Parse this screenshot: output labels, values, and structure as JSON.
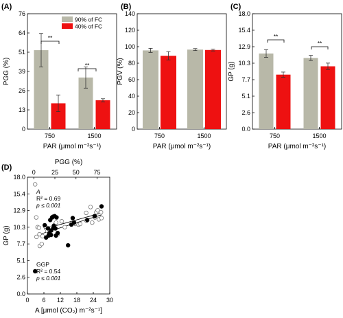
{
  "chart_data": [
    {
      "panel": "(A)",
      "type": "bar",
      "categories": [
        "750",
        "1500"
      ],
      "ylabel": "PGG (%)",
      "xlabel": "PAR (μmol m⁻²s⁻¹)",
      "ylim": [
        0,
        76
      ],
      "yticks": [
        "0",
        "13",
        "26",
        "39",
        "51",
        "64",
        "76"
      ],
      "legend": "top-right",
      "series": [
        {
          "name": "90% of FC",
          "color": "#b8b8a8",
          "values": [
            52,
            34
          ],
          "errors": [
            11,
            7
          ]
        },
        {
          "name": "40% of FC",
          "color": "#ee1111",
          "values": [
            17,
            19
          ],
          "errors": [
            5.5,
            1
          ]
        }
      ],
      "annotations": [
        "**",
        "**"
      ]
    },
    {
      "panel": "(B)",
      "type": "bar",
      "categories": [
        "750",
        "1500"
      ],
      "ylabel": "PGV (%)",
      "xlabel": "PAR (μmol m⁻²s⁻¹)",
      "ylim": [
        0,
        140
      ],
      "yticks": [
        "0",
        "20",
        "40",
        "60",
        "80",
        "100",
        "120",
        "140"
      ],
      "series": [
        {
          "name": "90% of FC",
          "color": "#b8b8a8",
          "values": [
            95.5,
            96.5
          ],
          "errors": [
            2.5,
            1.2
          ]
        },
        {
          "name": "40% of FC",
          "color": "#ee1111",
          "values": [
            89,
            96
          ],
          "errors": [
            5,
            1.2
          ]
        }
      ]
    },
    {
      "panel": "(C)",
      "type": "bar",
      "categories": [
        "750",
        "1500"
      ],
      "ylabel": "GP (g)",
      "xlabel": "PAR (μmol m⁻²s⁻¹)",
      "ylim": [
        0,
        18
      ],
      "yticks": [
        "0.0",
        "2.6",
        "5.1",
        "7.7",
        "10.3",
        "12.9",
        "15.4",
        "18.0"
      ],
      "series": [
        {
          "name": "90% of FC",
          "color": "#b8b8a8",
          "values": [
            11.8,
            11.1
          ],
          "errors": [
            0.6,
            0.4
          ]
        },
        {
          "name": "40% of FC",
          "color": "#ee1111",
          "values": [
            8.5,
            9.8
          ],
          "errors": [
            0.4,
            0.5
          ]
        }
      ],
      "annotations": [
        "**",
        "**"
      ]
    },
    {
      "panel": "(D)",
      "type": "scatter",
      "ylabel": "GP (g)",
      "xlabel": "A [μmol (CO₂) m⁻²s⁻¹]",
      "xlabel_top": "PGG (%)",
      "xlim": [
        0,
        30
      ],
      "xticks": [
        "0",
        "6",
        "12",
        "18",
        "24",
        "30"
      ],
      "xlim_top": [
        -7.5,
        90
      ],
      "xticks_top": [
        "0",
        "25",
        "50",
        "75"
      ],
      "ylim": [
        0,
        18
      ],
      "yticks": [
        "0.0",
        "2.6",
        "5.1",
        "7.7",
        "10.3",
        "12.9",
        "15.4",
        "18.0"
      ],
      "series": [
        {
          "name": "A",
          "marker": "open-circle",
          "stat_lines": [
            "A",
            "R² = 0.69",
            "p ≤ 0.001"
          ],
          "fit": [
            [
              3,
              9.0
            ],
            [
              27,
              12.2
            ]
          ],
          "points": [
            [
              2.8,
              16.9
            ],
            [
              3.2,
              11.8
            ],
            [
              3.3,
              8.8
            ],
            [
              3.7,
              10.3
            ],
            [
              4.2,
              10.2
            ],
            [
              4.4,
              9.2
            ],
            [
              5.5,
              8.9
            ],
            [
              4.5,
              7.4
            ],
            [
              5.2,
              7.7
            ],
            [
              6.5,
              10.4
            ],
            [
              7.3,
              9.7
            ],
            [
              8.1,
              10.1
            ],
            [
              9.8,
              10.6
            ],
            [
              10.4,
              11.0
            ],
            [
              11.0,
              9.2
            ],
            [
              12.5,
              11.2
            ],
            [
              13.6,
              10.3
            ],
            [
              17.4,
              10.8
            ],
            [
              18.6,
              10.7
            ],
            [
              19.2,
              10.8
            ],
            [
              21.4,
              12.5
            ],
            [
              21.5,
              11.3
            ],
            [
              23.0,
              13.4
            ],
            [
              23.6,
              11.0
            ],
            [
              24.6,
              11.8
            ],
            [
              25.1,
              12.6
            ],
            [
              25.6,
              12.9
            ],
            [
              26.0,
              11.5
            ],
            [
              26.8,
              12.6
            ],
            [
              27.0,
              11.7
            ]
          ]
        },
        {
          "name": "GGP",
          "marker": "filled-circle",
          "stat_lines": [
            "GGP",
            "R² = 0.54",
            "p ≤ 0.001"
          ],
          "fit": [
            [
              6,
              10.0
            ],
            [
              27,
              12.5
            ]
          ],
          "points": [
            [
              2.8,
              3.5
            ],
            [
              6.3,
              10.6
            ],
            [
              6.8,
              8.7
            ],
            [
              7.5,
              10.1
            ],
            [
              7.7,
              9.0
            ],
            [
              8.0,
              9.4
            ],
            [
              8.3,
              11.4
            ],
            [
              8.6,
              9.1
            ],
            [
              8.7,
              9.8
            ],
            [
              9.0,
              11.8
            ],
            [
              9.3,
              11.9
            ],
            [
              9.5,
              10.2
            ],
            [
              9.6,
              10.5
            ],
            [
              9.9,
              12.0
            ],
            [
              10.2,
              10.1
            ],
            [
              10.4,
              9.0
            ],
            [
              10.6,
              11.8
            ],
            [
              11.0,
              9.4
            ],
            [
              14.8,
              7.5
            ],
            [
              16.0,
              10.7
            ],
            [
              16.5,
              11.7
            ],
            [
              17.0,
              11.0
            ],
            [
              21.8,
              11.4
            ],
            [
              24.5,
              12.0
            ],
            [
              27.0,
              13.5
            ]
          ]
        }
      ]
    }
  ]
}
